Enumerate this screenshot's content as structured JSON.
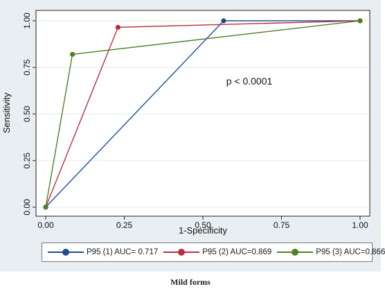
{
  "chart_data": {
    "type": "line",
    "xlabel": "1-Specificity",
    "ylabel": "Sensitivity",
    "xlim": [
      0,
      1
    ],
    "ylim": [
      0,
      1
    ],
    "xticks": [
      "0.00",
      "0.25",
      "0.50",
      "0.75",
      "1.00"
    ],
    "yticks": [
      "0.00",
      "0.25",
      "0.50",
      "0.75",
      "1.00"
    ],
    "grid": true,
    "annotation": "p < 0.0001",
    "legend_position": "bottom",
    "series": [
      {
        "name": "P95 (1) AUC= 0.717",
        "color": "#1f4e8c",
        "points": [
          [
            0,
            0
          ],
          [
            0.566,
            1.0
          ],
          [
            1.0,
            1.0
          ]
        ]
      },
      {
        "name": "P95 (2) AUC=0.869",
        "color": "#b5313b",
        "points": [
          [
            0,
            0
          ],
          [
            0.23,
            0.965
          ],
          [
            1.0,
            1.0
          ]
        ]
      },
      {
        "name": "P95 (3) AUC=0.866",
        "color": "#4f7f26",
        "points": [
          [
            0,
            0
          ],
          [
            0.085,
            0.82
          ],
          [
            1.0,
            1.0
          ]
        ]
      }
    ],
    "outer_background": "#e8eef2",
    "plot_background": "#ffffff"
  },
  "caption": "Mild forms"
}
